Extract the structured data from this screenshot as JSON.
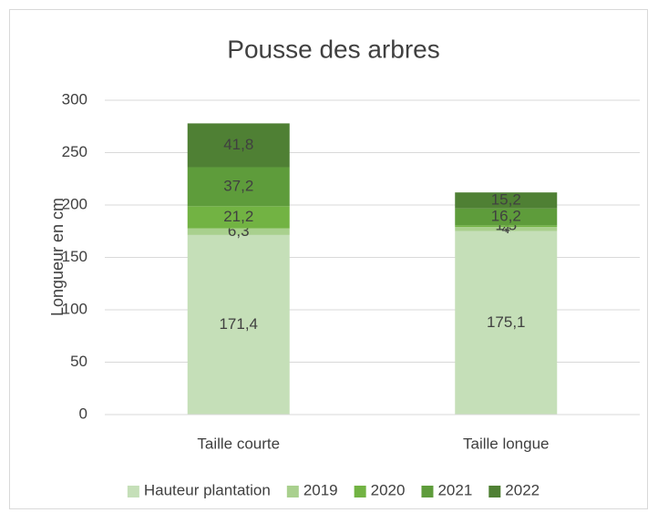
{
  "chart_data": {
    "type": "stacked_bar",
    "title": "Pousse des arbres",
    "y_label": "Longueur en cm",
    "categories": [
      "Taille courte",
      "Taille longue"
    ],
    "series": [
      {
        "name": "Hauteur plantation",
        "color": "#c5dfb8",
        "values": [
          171.4,
          175.1
        ],
        "value_labels": [
          "171,4",
          "175,1"
        ]
      },
      {
        "name": "2019",
        "color": "#a9d08e",
        "values": [
          6.3,
          4
        ],
        "value_labels": [
          "6,3",
          "4"
        ]
      },
      {
        "name": "2020",
        "color": "#72b343",
        "values": [
          21.2,
          1.5
        ],
        "value_labels": [
          "21,2",
          "1,5"
        ]
      },
      {
        "name": "2021",
        "color": "#5e9c3b",
        "values": [
          37.2,
          16.2
        ],
        "value_labels": [
          "37,2",
          "16,2"
        ]
      },
      {
        "name": "2022",
        "color": "#4f8034",
        "values": [
          41.8,
          15.2
        ],
        "value_labels": [
          "41,8",
          "15,2"
        ]
      }
    ],
    "ylim": [
      0,
      300
    ],
    "yticks": [
      0,
      50,
      100,
      150,
      200,
      250,
      300
    ],
    "grid": true,
    "legend": "bottom"
  }
}
